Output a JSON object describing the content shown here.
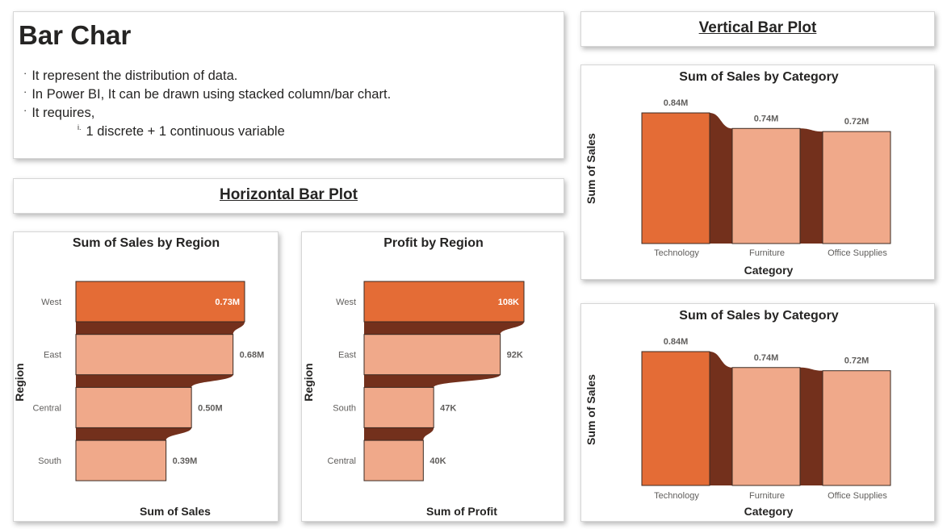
{
  "intro": {
    "title": "Bar Char",
    "bullets": [
      "It represent the distribution of data.",
      "In Power BI, It can be drawn using stacked column/bar chart.",
      "It requires,"
    ],
    "sub_bullet_marker": "i.",
    "sub_bullet": "1 discrete + 1 continuous variable"
  },
  "banners": {
    "vertical": "Vertical Bar Plot",
    "horizontal": "Horizontal Bar Plot"
  },
  "colors": {
    "highlight": "#e46c36",
    "bar": "#f0a98a",
    "ribbon": "#73301c",
    "bar_border": "#3b2a22"
  },
  "chart_data": [
    {
      "id": "sales-by-region",
      "type": "bar",
      "orientation": "horizontal",
      "title": "Sum of Sales by Region",
      "xlabel": "Sum of Sales",
      "ylabel": "Region",
      "categories": [
        "West",
        "East",
        "Central",
        "South"
      ],
      "values": [
        0.73,
        0.68,
        0.5,
        0.39
      ],
      "value_labels": [
        "0.73M",
        "0.68M",
        "0.50M",
        "0.39M"
      ],
      "unit": "M",
      "xlim": [
        0,
        0.73
      ],
      "highlight_index": 0,
      "ribbon": true
    },
    {
      "id": "profit-by-region",
      "type": "bar",
      "orientation": "horizontal",
      "title": "Profit by Region",
      "xlabel": "Sum of Profit",
      "ylabel": "Region",
      "categories": [
        "West",
        "East",
        "South",
        "Central"
      ],
      "values": [
        108,
        92,
        47,
        40
      ],
      "value_labels": [
        "108K",
        "92K",
        "47K",
        "40K"
      ],
      "unit": "K",
      "xlim": [
        0,
        108
      ],
      "highlight_index": 0,
      "ribbon": true
    },
    {
      "id": "sales-by-category-1",
      "type": "bar",
      "orientation": "vertical",
      "title": "Sum of Sales by Category",
      "xlabel": "Category",
      "ylabel": "Sum of Sales",
      "categories": [
        "Technology",
        "Furniture",
        "Office Supplies"
      ],
      "values": [
        0.84,
        0.74,
        0.72
      ],
      "value_labels": [
        "0.84M",
        "0.74M",
        "0.72M"
      ],
      "unit": "M",
      "ylim": [
        0,
        0.84
      ],
      "highlight_index": 0,
      "ribbon": true
    },
    {
      "id": "sales-by-category-2",
      "type": "bar",
      "orientation": "vertical",
      "title": "Sum of Sales by Category",
      "xlabel": "Category",
      "ylabel": "Sum of Sales",
      "categories": [
        "Technology",
        "Furniture",
        "Office Supplies"
      ],
      "values": [
        0.84,
        0.74,
        0.72
      ],
      "value_labels": [
        "0.84M",
        "0.74M",
        "0.72M"
      ],
      "unit": "M",
      "ylim": [
        0,
        0.84
      ],
      "highlight_index": 0,
      "ribbon": true
    }
  ]
}
